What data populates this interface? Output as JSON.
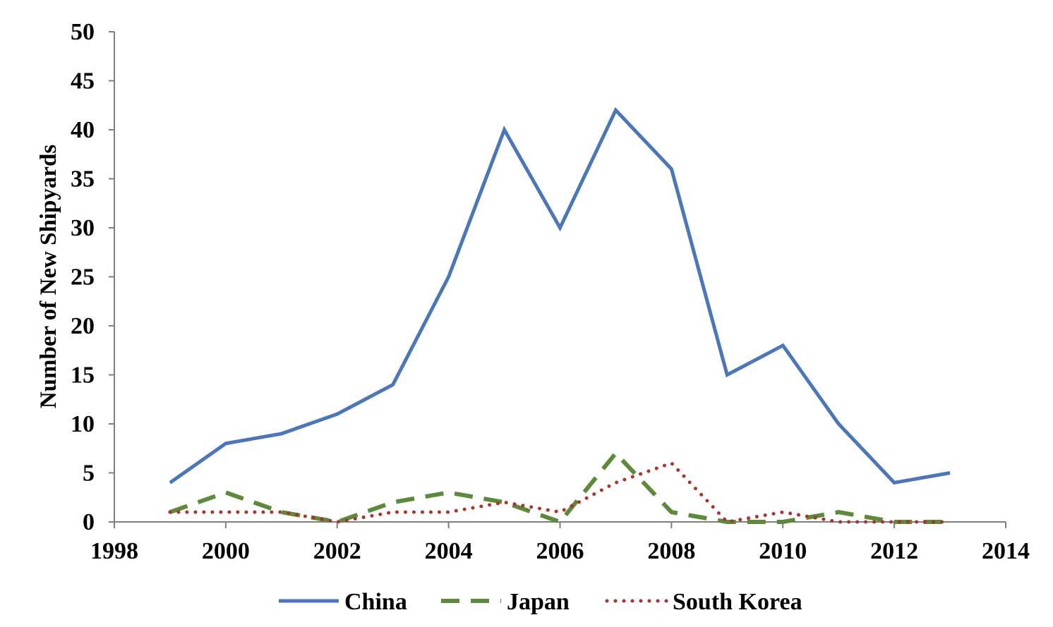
{
  "chart_data": {
    "type": "line",
    "title": "",
    "xlabel": "",
    "ylabel": "Number of New Shipyards",
    "xlim": [
      1998,
      2014
    ],
    "ylim": [
      0,
      50
    ],
    "x_ticks": [
      1998,
      2000,
      2002,
      2004,
      2006,
      2008,
      2010,
      2012,
      2014
    ],
    "y_ticks": [
      0,
      5,
      10,
      15,
      20,
      25,
      30,
      35,
      40,
      45,
      50
    ],
    "grid": false,
    "legend_position": "bottom",
    "x": [
      1999,
      2000,
      2001,
      2002,
      2003,
      2004,
      2005,
      2006,
      2007,
      2008,
      2009,
      2010,
      2011,
      2012,
      2013
    ],
    "series": [
      {
        "name": "China",
        "color": "#4a76bb",
        "style": "solid",
        "values": [
          4,
          8,
          9,
          11,
          14,
          25,
          40,
          30,
          42,
          36,
          15,
          18,
          10,
          4,
          5
        ]
      },
      {
        "name": "Japan",
        "color": "#5c8a3a",
        "style": "dashed",
        "values": [
          1,
          3,
          1,
          0,
          2,
          3,
          2,
          0,
          7,
          1,
          0,
          0,
          1,
          0,
          0
        ]
      },
      {
        "name": "South Korea",
        "color": "#b0302a",
        "style": "dotted",
        "values": [
          1,
          1,
          1,
          0,
          1,
          1,
          2,
          1,
          4,
          6,
          0,
          1,
          0,
          0,
          0
        ]
      }
    ]
  }
}
